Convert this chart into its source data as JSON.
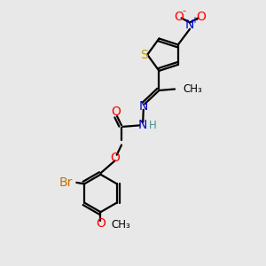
{
  "bg_color": "#e8e8e8",
  "atom_colors": {
    "S": "#b8a000",
    "N": "#0000cc",
    "O": "#ff0000",
    "Br": "#c87000",
    "H": "#4a9090",
    "C": "#000000"
  },
  "bond_color": "#000000",
  "bond_width": 1.6,
  "font_size_atoms": 10,
  "font_size_small": 8.5,
  "font_size_charge": 7
}
